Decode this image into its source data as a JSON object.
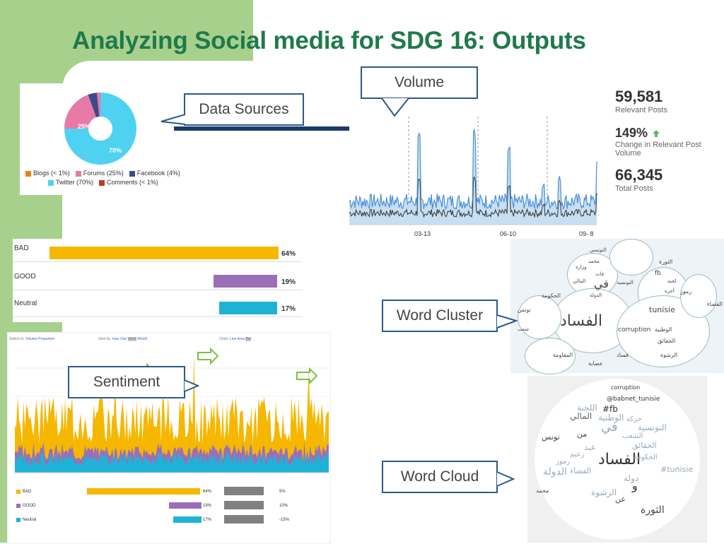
{
  "title": "Analyzing Social media for SDG 16: Outputs",
  "callouts": {
    "volume": "Volume",
    "data_sources": "Data Sources",
    "word_cluster": "Word Cluster",
    "sentiment": "Sentiment",
    "word_cloud": "Word Cloud"
  },
  "colors": {
    "green_band": "#a8d08d",
    "title": "#1e7a4a",
    "callout_border": "#2b5a8a"
  },
  "data_sources": {
    "donut_labels": {
      "twitter": "70%",
      "forums": "25%"
    },
    "legend": [
      {
        "label": "Blogs (< 1%)",
        "color": "#e8811c"
      },
      {
        "label": "Forums (25%)",
        "color": "#e77aa5"
      },
      {
        "label": "Facebook (4%)",
        "color": "#3b4a8f"
      },
      {
        "label": "Twitter (70%)",
        "color": "#4fd1f2"
      },
      {
        "label": "Comments (< 1%)",
        "color": "#c0392b"
      }
    ]
  },
  "stats": [
    {
      "value": "59,581",
      "label": "Relevant Posts"
    },
    {
      "value": "149%",
      "label": "Change in Relevant Post Volume"
    },
    {
      "value": "66,345",
      "label": "Total Posts"
    }
  ],
  "volume_chart": {
    "ticks": [
      "03-13",
      "06-10",
      "09- 8"
    ]
  },
  "sentiment": {
    "rows": [
      {
        "label": "BAD",
        "pct": "64%",
        "value": 0.64,
        "color": "#f5b700"
      },
      {
        "label": "GOOD",
        "pct": "19%",
        "value": 0.19,
        "color": "#9b6fb8"
      },
      {
        "label": "Neutral",
        "pct": "17%",
        "value": 0.17,
        "color": "#1eb3d6"
      }
    ],
    "toolbar": {
      "switch_to": "Switch to:",
      "volume": "Volume",
      "proportion": "Proportion",
      "view_by": "View by:",
      "hour": "hour",
      "day": "Day",
      "week": "Week",
      "month": "Month",
      "chart": "Chart:",
      "line": "Line",
      "area": "Area",
      "bar": "Bar"
    },
    "mini_rows": [
      {
        "label": "BAD",
        "pct": "64%",
        "change": "5%"
      },
      {
        "label": "GOOD",
        "pct": "19%",
        "change": "10%"
      },
      {
        "label": "Neutral",
        "pct": "17%",
        "change": "-15%"
      }
    ]
  },
  "word_cluster": {
    "words": [
      "التونسي",
      "محمد",
      "وزارة",
      "فات",
      "المالي",
      "في",
      "التونسية",
      "الدولة",
      "الحكومة",
      "الفساد",
      "tunisie",
      "corruption",
      "الوطنية",
      "الحقائق",
      "الرشوة",
      "فساد",
      "المقاومة",
      "عصابة",
      "تونس",
      "شعب",
      "الثورة",
      "لجنة",
      "fb",
      "رموز",
      "القضاء",
      "أجرة"
    ]
  },
  "word_cloud": {
    "words": [
      "corruption",
      "@babnet_tunisie",
      "#fb",
      "اللجنة",
      "المالي",
      "الوطنية",
      "في",
      "من",
      "تونس",
      "الفساد",
      "الحقائق",
      "الحكومة",
      "الثورة",
      "#tunisie",
      "دولة",
      "الرشوة",
      "القضاء",
      "التونسية",
      "الشعب",
      "حركة",
      "محمد",
      "و",
      "عن",
      "عبد",
      "زعيم",
      "الدولة",
      "رموز"
    ]
  }
}
